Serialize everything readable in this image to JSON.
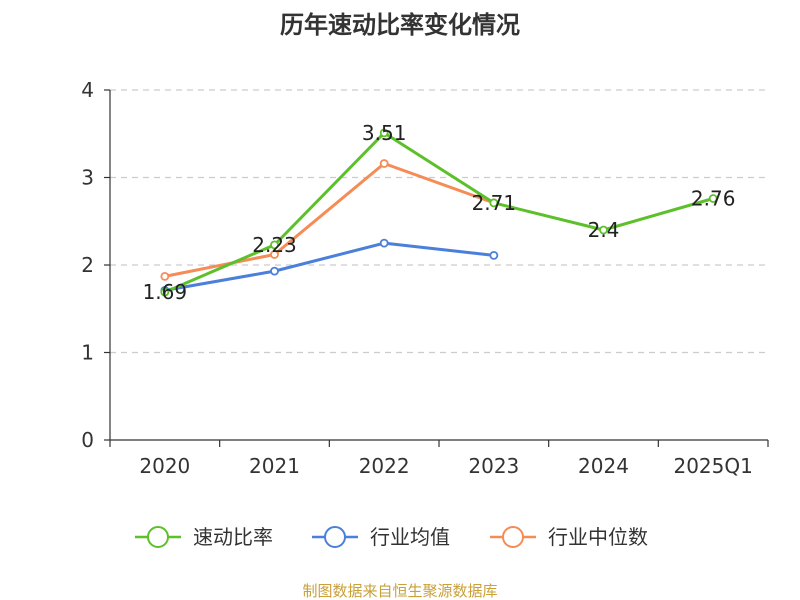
{
  "chart_data": {
    "type": "line",
    "title": "历年速动比率变化情况",
    "categories": [
      "2020",
      "2021",
      "2022",
      "2023",
      "2024",
      "2025Q1"
    ],
    "y_ticks": [
      "0",
      "1",
      "2",
      "3",
      "4"
    ],
    "ylim": [
      0,
      4
    ],
    "grid": true,
    "legend_position": "bottom",
    "series": [
      {
        "name": "速动比率",
        "color": "#5cc02a",
        "values": [
          1.69,
          2.23,
          3.51,
          2.71,
          2.4,
          2.76
        ],
        "labels": [
          "1.69",
          "2.23",
          "3.51",
          "2.71",
          "2.4",
          "2.76"
        ]
      },
      {
        "name": "行业均值",
        "color": "#4a7fdb",
        "values": [
          1.71,
          1.93,
          2.25,
          2.11,
          null,
          null
        ]
      },
      {
        "name": "行业中位数",
        "color": "#f58b55",
        "values": [
          1.87,
          2.12,
          3.16,
          2.71,
          null,
          null
        ]
      }
    ]
  },
  "source": {
    "text": "制图数据来自恒生聚源数据库",
    "color": "#c9a03a"
  }
}
